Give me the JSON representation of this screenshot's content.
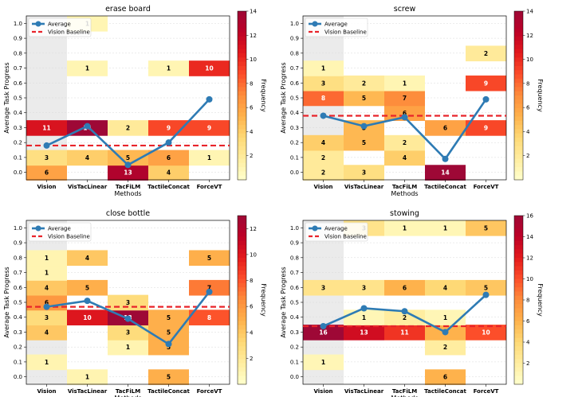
{
  "chart_data": [
    {
      "type": "heatmap",
      "title": "erase board",
      "xlabel": "Methods",
      "ylabel": "Average Task Progress",
      "categories": [
        "Vision",
        "VisTacLinear",
        "TacFiLM",
        "TactileConcat",
        "ForceVT"
      ],
      "y_ticks": [
        "0.0",
        "0.1",
        "0.2",
        "0.3",
        "0.4",
        "0.5",
        "0.6",
        "0.7",
        "0.8",
        "0.9",
        "1.0"
      ],
      "ylim": [
        0,
        1.0
      ],
      "colorbar": {
        "label": "Frequency",
        "min": 0,
        "max": 14,
        "ticks": [
          "2",
          "4",
          "6",
          "8",
          "10",
          "12",
          "14"
        ]
      },
      "cells": [
        {
          "method": 0,
          "progress": 0.0,
          "count": 6
        },
        {
          "method": 0,
          "progress": 0.1,
          "count": 3
        },
        {
          "method": 0,
          "progress": 0.3,
          "count": 11
        },
        {
          "method": 1,
          "progress": 0.1,
          "count": 4
        },
        {
          "method": 1,
          "progress": 0.3,
          "count": 14
        },
        {
          "method": 1,
          "progress": 0.7,
          "count": 1
        },
        {
          "method": 1,
          "progress": 1.0,
          "count": 1
        },
        {
          "method": 2,
          "progress": 0.0,
          "count": 13
        },
        {
          "method": 2,
          "progress": 0.1,
          "count": 5
        },
        {
          "method": 2,
          "progress": 0.3,
          "count": 2
        },
        {
          "method": 3,
          "progress": 0.0,
          "count": 4
        },
        {
          "method": 3,
          "progress": 0.1,
          "count": 6
        },
        {
          "method": 3,
          "progress": 0.3,
          "count": 9
        },
        {
          "method": 3,
          "progress": 0.7,
          "count": 1
        },
        {
          "method": 4,
          "progress": 0.1,
          "count": 1
        },
        {
          "method": 4,
          "progress": 0.3,
          "count": 9
        },
        {
          "method": 4,
          "progress": 0.7,
          "count": 10
        }
      ],
      "average": [
        0.18,
        0.31,
        0.05,
        0.2,
        0.49
      ],
      "vision_baseline": 0.18,
      "legend": {
        "position": "top-left",
        "average_label": "Average",
        "baseline_label": "Vision Baseline"
      }
    },
    {
      "type": "heatmap",
      "title": "screw",
      "xlabel": "Methods",
      "ylabel": "Average Task Progress",
      "categories": [
        "Vision",
        "VisTacLinear",
        "TacFiLM",
        "TactileConcat",
        "ForceVT"
      ],
      "y_ticks": [
        "0.0",
        "0.1",
        "0.2",
        "0.3",
        "0.4",
        "0.5",
        "0.6",
        "0.7",
        "0.8",
        "0.9",
        "1.0"
      ],
      "ylim": [
        0,
        1.0
      ],
      "colorbar": {
        "label": "Frequency",
        "min": 0,
        "max": 14,
        "ticks": [
          "2",
          "4",
          "6",
          "8",
          "10",
          "12",
          "14"
        ]
      },
      "cells": [
        {
          "method": 0,
          "progress": 0.0,
          "count": 2
        },
        {
          "method": 0,
          "progress": 0.1,
          "count": 2
        },
        {
          "method": 0,
          "progress": 0.2,
          "count": 4
        },
        {
          "method": 0,
          "progress": 0.5,
          "count": 8
        },
        {
          "method": 0,
          "progress": 0.6,
          "count": 3
        },
        {
          "method": 0,
          "progress": 0.7,
          "count": 1
        },
        {
          "method": 1,
          "progress": 0.0,
          "count": 3
        },
        {
          "method": 1,
          "progress": 0.2,
          "count": 5
        },
        {
          "method": 1,
          "progress": 0.3,
          "count": 5
        },
        {
          "method": 1,
          "progress": 0.5,
          "count": 5
        },
        {
          "method": 1,
          "progress": 0.6,
          "count": 2
        },
        {
          "method": 2,
          "progress": 0.1,
          "count": 4
        },
        {
          "method": 2,
          "progress": 0.2,
          "count": 2
        },
        {
          "method": 2,
          "progress": 0.4,
          "count": 6
        },
        {
          "method": 2,
          "progress": 0.5,
          "count": 7
        },
        {
          "method": 2,
          "progress": 0.6,
          "count": 1
        },
        {
          "method": 3,
          "progress": 0.0,
          "count": 14
        },
        {
          "method": 3,
          "progress": 0.3,
          "count": 6
        },
        {
          "method": 4,
          "progress": 0.3,
          "count": 9
        },
        {
          "method": 4,
          "progress": 0.6,
          "count": 9
        },
        {
          "method": 4,
          "progress": 0.8,
          "count": 2
        }
      ],
      "average": [
        0.38,
        0.31,
        0.37,
        0.09,
        0.49
      ],
      "vision_baseline": 0.38,
      "legend": {
        "position": "top-left",
        "average_label": "Average",
        "baseline_label": "Vision Baseline"
      }
    },
    {
      "type": "heatmap",
      "title": "close bottle",
      "xlabel": "Methods",
      "ylabel": "Average Task Progress",
      "categories": [
        "Vision",
        "VisTacLinear",
        "TacFiLM",
        "TactileConcat",
        "ForceVT"
      ],
      "y_ticks": [
        "0.0",
        "0.1",
        "0.2",
        "0.3",
        "0.4",
        "0.5",
        "0.6",
        "0.7",
        "0.8",
        "0.9",
        "1.0"
      ],
      "ylim": [
        0,
        1.0
      ],
      "colorbar": {
        "label": "Frequency",
        "min": 0,
        "max": 13,
        "ticks": [
          "2",
          "4",
          "6",
          "8",
          "10",
          "12"
        ]
      },
      "cells": [
        {
          "method": 0,
          "progress": 0.1,
          "count": 1
        },
        {
          "method": 0,
          "progress": 0.3,
          "count": 4
        },
        {
          "method": 0,
          "progress": 0.4,
          "count": 3
        },
        {
          "method": 0,
          "progress": 0.5,
          "count": 6
        },
        {
          "method": 0,
          "progress": 0.6,
          "count": 4
        },
        {
          "method": 0,
          "progress": 0.7,
          "count": 1
        },
        {
          "method": 0,
          "progress": 0.8,
          "count": 1
        },
        {
          "method": 1,
          "progress": 0.0,
          "count": 1
        },
        {
          "method": 1,
          "progress": 0.4,
          "count": 10
        },
        {
          "method": 1,
          "progress": 0.6,
          "count": 5
        },
        {
          "method": 1,
          "progress": 0.8,
          "count": 4
        },
        {
          "method": 2,
          "progress": 0.2,
          "count": 1
        },
        {
          "method": 2,
          "progress": 0.3,
          "count": 3
        },
        {
          "method": 2,
          "progress": 0.4,
          "count": 13
        },
        {
          "method": 2,
          "progress": 0.5,
          "count": 3
        },
        {
          "method": 3,
          "progress": 0.0,
          "count": 5
        },
        {
          "method": 3,
          "progress": 0.2,
          "count": 5
        },
        {
          "method": 3,
          "progress": 0.3,
          "count": 5
        },
        {
          "method": 3,
          "progress": 0.4,
          "count": 5
        },
        {
          "method": 4,
          "progress": 0.4,
          "count": 8
        },
        {
          "method": 4,
          "progress": 0.6,
          "count": 7
        },
        {
          "method": 4,
          "progress": 0.8,
          "count": 5
        }
      ],
      "average": [
        0.47,
        0.51,
        0.39,
        0.22,
        0.57
      ],
      "vision_baseline": 0.47,
      "legend": {
        "position": "top-left",
        "average_label": "Average",
        "baseline_label": "Vision Baseline"
      }
    },
    {
      "type": "heatmap",
      "title": "stowing",
      "xlabel": "Methods",
      "ylabel": "Average Task Progress",
      "categories": [
        "Vision",
        "VisTacLinear",
        "TacFiLM",
        "TactileConcat",
        "ForceVT"
      ],
      "y_ticks": [
        "0.0",
        "0.1",
        "0.2",
        "0.3",
        "0.4",
        "0.5",
        "0.6",
        "0.7",
        "0.8",
        "0.9",
        "1.0"
      ],
      "ylim": [
        0,
        1.0
      ],
      "colorbar": {
        "label": "Frequency",
        "min": 0,
        "max": 16,
        "ticks": [
          "2",
          "4",
          "6",
          "8",
          "10",
          "12",
          "14",
          "16"
        ]
      },
      "cells": [
        {
          "method": 0,
          "progress": 0.1,
          "count": 1
        },
        {
          "method": 0,
          "progress": 0.3,
          "count": 16
        },
        {
          "method": 0,
          "progress": 0.6,
          "count": 3
        },
        {
          "method": 1,
          "progress": 0.3,
          "count": 13
        },
        {
          "method": 1,
          "progress": 0.4,
          "count": 1
        },
        {
          "method": 1,
          "progress": 0.6,
          "count": 3
        },
        {
          "method": 1,
          "progress": 1.0,
          "count": 3
        },
        {
          "method": 2,
          "progress": 0.3,
          "count": 11
        },
        {
          "method": 2,
          "progress": 0.4,
          "count": 2
        },
        {
          "method": 2,
          "progress": 0.6,
          "count": 6
        },
        {
          "method": 2,
          "progress": 1.0,
          "count": 1
        },
        {
          "method": 3,
          "progress": 0.0,
          "count": 6
        },
        {
          "method": 3,
          "progress": 0.2,
          "count": 2
        },
        {
          "method": 3,
          "progress": 0.3,
          "count": 6
        },
        {
          "method": 3,
          "progress": 0.4,
          "count": 1
        },
        {
          "method": 3,
          "progress": 0.6,
          "count": 4
        },
        {
          "method": 3,
          "progress": 1.0,
          "count": 1
        },
        {
          "method": 4,
          "progress": 0.3,
          "count": 10
        },
        {
          "method": 4,
          "progress": 0.6,
          "count": 5
        },
        {
          "method": 4,
          "progress": 1.0,
          "count": 5
        }
      ],
      "average": [
        0.34,
        0.46,
        0.44,
        0.3,
        0.55
      ],
      "vision_baseline": 0.34,
      "legend": {
        "position": "top-left",
        "average_label": "Average",
        "baseline_label": "Vision Baseline"
      }
    }
  ],
  "colors": {
    "average_line": "#2e7bb4",
    "baseline_line": "#e8242a",
    "vision_column_bg": "#ebebeb",
    "colormap": [
      "#ffffcc",
      "#ffeda0",
      "#fed976",
      "#feb24c",
      "#fd8d3c",
      "#fc4e2a",
      "#e31a1c",
      "#bd0026",
      "#9e0836"
    ]
  }
}
